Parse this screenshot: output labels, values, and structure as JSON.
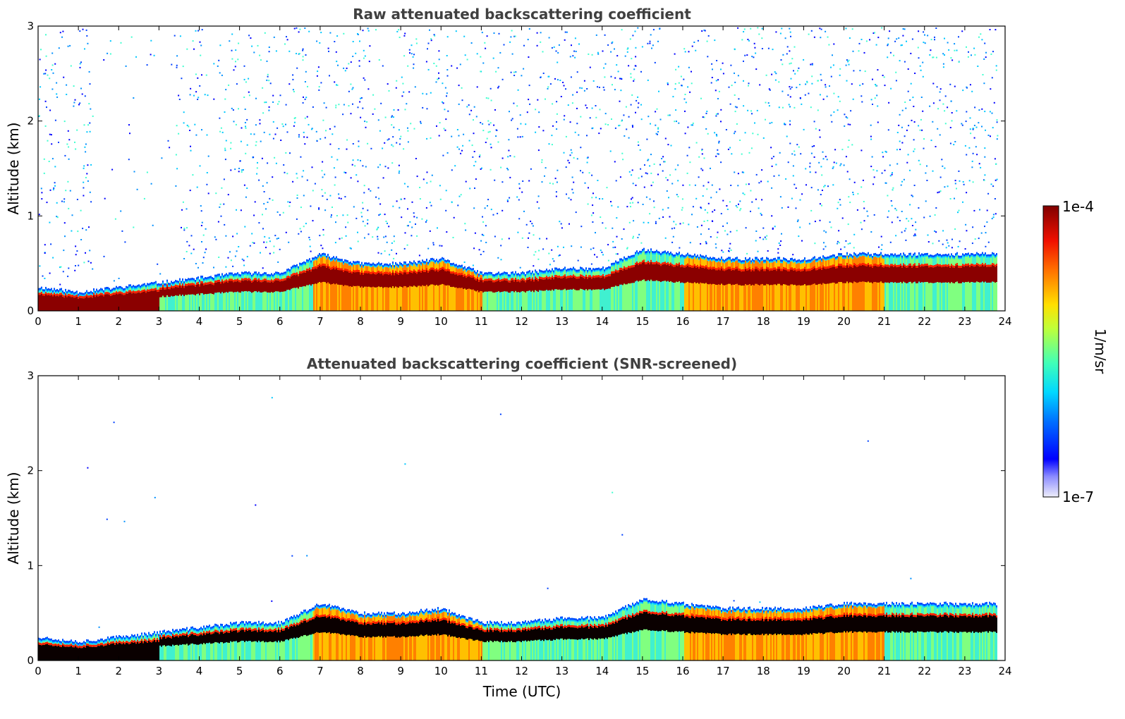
{
  "chart_data": [
    {
      "type": "heatmap",
      "title": "Raw attenuated backscattering coefficient",
      "xlabel": "",
      "ylabel": "Altitude (km)",
      "xlim": [
        0,
        24
      ],
      "ylim": [
        0,
        3
      ],
      "x_ticks": [
        "0",
        "1",
        "2",
        "3",
        "4",
        "5",
        "6",
        "7",
        "8",
        "9",
        "10",
        "11",
        "12",
        "13",
        "14",
        "15",
        "16",
        "17",
        "18",
        "19",
        "20",
        "21",
        "22",
        "23",
        "24"
      ],
      "y_ticks": [
        "0",
        "1",
        "2",
        "3"
      ],
      "data_end_hour": 23.8,
      "layer_top_km_by_hour": {
        "hours": [
          0,
          1,
          2,
          3,
          4,
          5,
          6,
          7,
          8,
          9,
          10,
          11,
          12,
          13,
          14,
          15,
          16,
          17,
          18,
          19,
          20,
          21,
          22,
          23,
          23.8
        ],
        "values": [
          0.25,
          0.2,
          0.25,
          0.3,
          0.35,
          0.4,
          0.4,
          0.6,
          0.5,
          0.5,
          0.55,
          0.4,
          0.4,
          0.45,
          0.45,
          0.65,
          0.6,
          0.55,
          0.55,
          0.55,
          0.6,
          0.6,
          0.6,
          0.6,
          0.6
        ]
      },
      "noise": "sparse high-altitude background noise",
      "screened": false
    },
    {
      "type": "heatmap",
      "title": "Attenuated backscattering coefficient (SNR-screened)",
      "xlabel": "Time (UTC)",
      "ylabel": "Altitude (km)",
      "xlim": [
        0,
        24
      ],
      "ylim": [
        0,
        3
      ],
      "x_ticks": [
        "0",
        "1",
        "2",
        "3",
        "4",
        "5",
        "6",
        "7",
        "8",
        "9",
        "10",
        "11",
        "12",
        "13",
        "14",
        "15",
        "16",
        "17",
        "18",
        "19",
        "20",
        "21",
        "22",
        "23",
        "24"
      ],
      "y_ticks": [
        "0",
        "1",
        "2",
        "3"
      ],
      "data_end_hour": 23.8,
      "layer_top_km_by_hour": {
        "hours": [
          0,
          1,
          2,
          3,
          4,
          5,
          6,
          7,
          8,
          9,
          10,
          11,
          12,
          13,
          14,
          15,
          16,
          17,
          18,
          19,
          20,
          21,
          22,
          23,
          23.8
        ],
        "values": [
          0.25,
          0.2,
          0.25,
          0.3,
          0.35,
          0.4,
          0.4,
          0.6,
          0.5,
          0.5,
          0.55,
          0.4,
          0.4,
          0.45,
          0.45,
          0.65,
          0.6,
          0.55,
          0.55,
          0.55,
          0.6,
          0.6,
          0.6,
          0.6,
          0.6
        ]
      },
      "noise": "screened out",
      "screened": true
    }
  ],
  "colorbar": {
    "label": "1/m/sr",
    "max_label": "1e-4",
    "min_label": "1e-7",
    "scale": "log",
    "min": 1e-07,
    "max": 0.0001,
    "colormap": "jet",
    "colors": [
      "#e8e8f8",
      "#0000ff",
      "#00a0ff",
      "#00ffd0",
      "#80ff40",
      "#ffff00",
      "#ff9000",
      "#ff2000",
      "#8b0000"
    ]
  }
}
